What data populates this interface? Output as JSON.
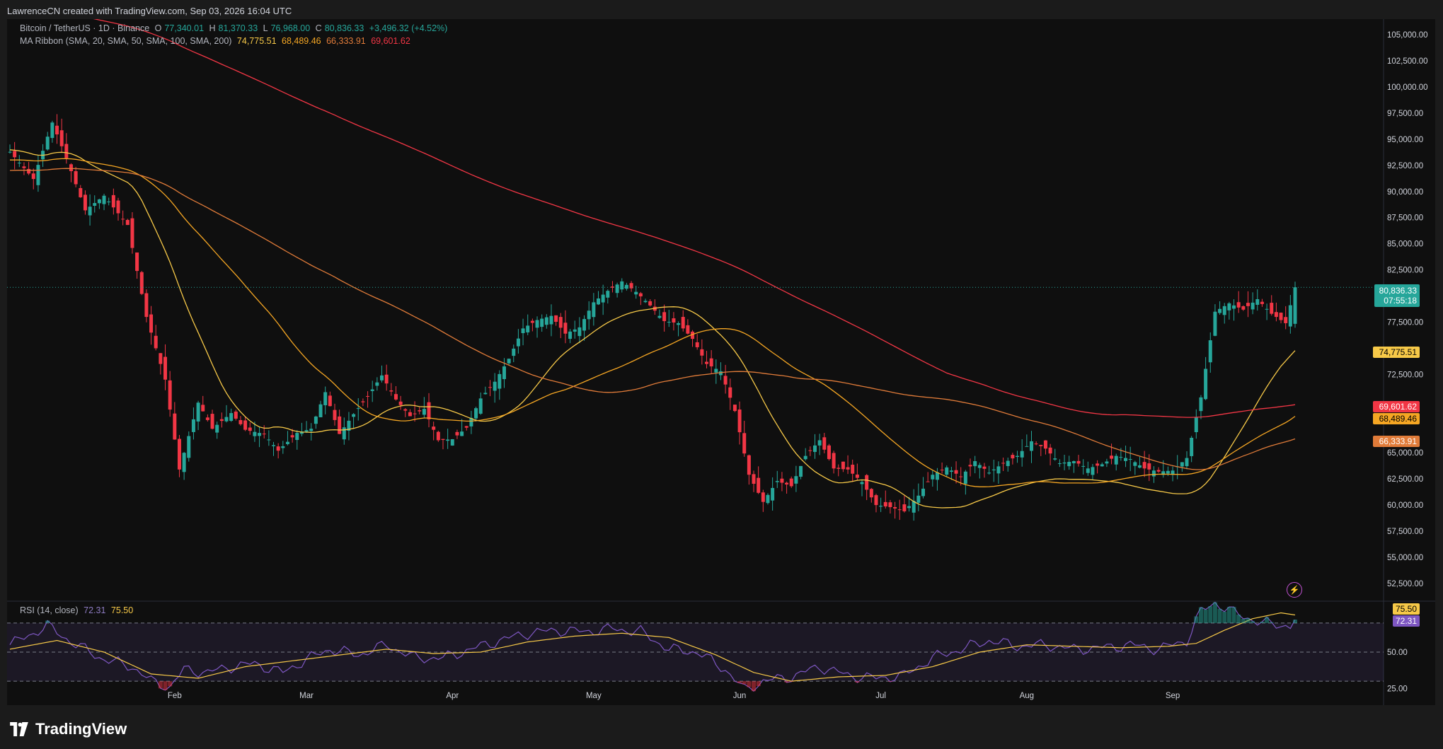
{
  "header": {
    "credit": "LawrenceCN created with TradingView.com, Sep 03, 2026 16:04 UTC"
  },
  "legend": {
    "symbol": "Bitcoin / TetherUS · 1D · Binance",
    "open_label": "O",
    "open": "77,340.01",
    "high_label": "H",
    "high": "81,370.33",
    "low_label": "L",
    "low": "76,968.00",
    "close_label": "C",
    "close": "80,836.33",
    "change": "+3,496.32 (+4.52%)",
    "ribbon_label": "MA Ribbon (SMA, 20, SMA, 50, SMA, 100, SMA, 200)",
    "ma20": "74,775.51",
    "ma50": "68,489.46",
    "ma100": "66,333.91",
    "ma200": "69,601.62"
  },
  "rsi_legend": {
    "label": "RSI (14, close)",
    "rsi": "72.31",
    "rsi_ma": "75.50"
  },
  "price_tag": {
    "price": "80,836.33",
    "countdown": "07:55:18"
  },
  "brand": {
    "name": "TradingView"
  },
  "colors": {
    "up": "#26a69a",
    "down": "#f23645",
    "ma20": "#f7c948",
    "ma50": "#f5a623",
    "ma100": "#e07b39",
    "ma200": "#f23645",
    "rsi": "#7e57c2",
    "rsi_ma": "#f7c948"
  },
  "chart_data": [
    {
      "type": "candlestick",
      "title": "Bitcoin / TetherUS · 1D · Binance",
      "x_labels": [
        "Feb",
        "Mar",
        "Apr",
        "May",
        "Jun",
        "Jul",
        "Aug",
        "Sep"
      ],
      "y_ticks": [
        "105,000.00",
        "102,500.00",
        "100,000.00",
        "97,500.00",
        "95,000.00",
        "92,500.00",
        "90,000.00",
        "87,500.00",
        "85,000.00",
        "82,500.00",
        "77,500.00",
        "72,500.00",
        "65,000.00",
        "62,500.00",
        "60,000.00",
        "57,500.00",
        "55,000.00",
        "52,500.00"
      ],
      "ylim": [
        50800,
        106500
      ],
      "grid": false,
      "candle_anchor_closes": [
        [
          0,
          93800
        ],
        [
          5,
          91200
        ],
        [
          9,
          96600
        ],
        [
          12,
          93200
        ],
        [
          16,
          88200
        ],
        [
          20,
          89600
        ],
        [
          25,
          86800
        ],
        [
          29,
          78000
        ],
        [
          33,
          72000
        ],
        [
          36,
          63400
        ],
        [
          40,
          69800
        ],
        [
          43,
          67300
        ],
        [
          47,
          68800
        ],
        [
          50,
          67200
        ],
        [
          54,
          66800
        ],
        [
          57,
          65200
        ],
        [
          61,
          66900
        ],
        [
          64,
          67300
        ],
        [
          67,
          70800
        ],
        [
          70,
          66800
        ],
        [
          73,
          68700
        ],
        [
          76,
          70400
        ],
        [
          79,
          72400
        ],
        [
          82,
          70100
        ],
        [
          85,
          68500
        ],
        [
          88,
          69200
        ],
        [
          91,
          66200
        ],
        [
          94,
          66300
        ],
        [
          97,
          67400
        ],
        [
          100,
          70200
        ],
        [
          103,
          71800
        ],
        [
          106,
          74000
        ],
        [
          109,
          76900
        ],
        [
          112,
          77700
        ],
        [
          115,
          78100
        ],
        [
          118,
          76400
        ],
        [
          121,
          77000
        ],
        [
          124,
          79400
        ],
        [
          127,
          80500
        ],
        [
          130,
          81400
        ],
        [
          133,
          80400
        ],
        [
          136,
          79100
        ],
        [
          139,
          77600
        ],
        [
          142,
          77400
        ],
        [
          145,
          75900
        ],
        [
          148,
          73500
        ],
        [
          151,
          72800
        ],
        [
          154,
          69000
        ],
        [
          157,
          62900
        ],
        [
          160,
          60300
        ],
        [
          163,
          62300
        ],
        [
          166,
          61800
        ],
        [
          169,
          64700
        ],
        [
          172,
          66200
        ],
        [
          175,
          63500
        ],
        [
          178,
          63400
        ],
        [
          181,
          62200
        ],
        [
          184,
          60000
        ],
        [
          187,
          59800
        ],
        [
          190,
          59400
        ],
        [
          193,
          60900
        ],
        [
          196,
          62900
        ],
        [
          199,
          63600
        ],
        [
          202,
          62700
        ],
        [
          205,
          64200
        ],
        [
          208,
          63100
        ],
        [
          211,
          64000
        ],
        [
          214,
          64700
        ],
        [
          217,
          66100
        ],
        [
          220,
          65400
        ],
        [
          223,
          64000
        ],
        [
          226,
          64200
        ],
        [
          229,
          63500
        ],
        [
          232,
          63900
        ],
        [
          235,
          64700
        ],
        [
          238,
          64400
        ],
        [
          241,
          63500
        ],
        [
          244,
          63200
        ],
        [
          247,
          63300
        ],
        [
          250,
          64500
        ],
        [
          253,
          70300
        ],
        [
          256,
          78500
        ],
        [
          259,
          79300
        ],
        [
          262,
          78700
        ],
        [
          265,
          79700
        ],
        [
          268,
          78300
        ],
        [
          271,
          77400
        ],
        [
          273,
          80836
        ]
      ],
      "series": [
        {
          "name": "SMA 20",
          "last": 74775.51
        },
        {
          "name": "SMA 50",
          "last": 68489.46
        },
        {
          "name": "SMA 100",
          "last": 66333.91
        },
        {
          "name": "SMA 200",
          "last": 69601.62
        }
      ],
      "last_close": 80836.33
    },
    {
      "type": "line",
      "title": "RSI (14, close)",
      "y_ticks": [
        "50.00",
        "25.00"
      ],
      "ylim": [
        15,
        85
      ],
      "bands": [
        30,
        50,
        70
      ],
      "series": [
        {
          "name": "RSI",
          "anchors": [
            [
              0,
              55
            ],
            [
              8,
              68
            ],
            [
              14,
              55
            ],
            [
              20,
              45
            ],
            [
              26,
              40
            ],
            [
              30,
              30
            ],
            [
              34,
              26
            ],
            [
              37,
              38
            ],
            [
              42,
              36
            ],
            [
              47,
              40
            ],
            [
              52,
              42
            ],
            [
              58,
              36
            ],
            [
              63,
              45
            ],
            [
              68,
              52
            ],
            [
              74,
              48
            ],
            [
              80,
              55
            ],
            [
              86,
              46
            ],
            [
              92,
              46
            ],
            [
              98,
              52
            ],
            [
              104,
              58
            ],
            [
              110,
              63
            ],
            [
              116,
              65
            ],
            [
              122,
              64
            ],
            [
              128,
              66
            ],
            [
              134,
              64
            ],
            [
              140,
              52
            ],
            [
              146,
              50
            ],
            [
              152,
              38
            ],
            [
              156,
              24
            ],
            [
              160,
              30
            ],
            [
              166,
              33
            ],
            [
              172,
              40
            ],
            [
              178,
              34
            ],
            [
              184,
              32
            ],
            [
              190,
              34
            ],
            [
              196,
              46
            ],
            [
              202,
              52
            ],
            [
              208,
              58
            ],
            [
              214,
              54
            ],
            [
              220,
              55
            ],
            [
              226,
              52
            ],
            [
              232,
              53
            ],
            [
              238,
              55
            ],
            [
              244,
              52
            ],
            [
              250,
              58
            ],
            [
              253,
              78
            ],
            [
              256,
              84
            ],
            [
              260,
              77
            ],
            [
              266,
              70
            ],
            [
              272,
              68
            ],
            [
              273,
              72.31
            ]
          ]
        },
        {
          "name": "RSI-based MA",
          "anchors": [
            [
              0,
              52
            ],
            [
              10,
              58
            ],
            [
              20,
              50
            ],
            [
              30,
              35
            ],
            [
              40,
              32
            ],
            [
              50,
              40
            ],
            [
              60,
              44
            ],
            [
              70,
              48
            ],
            [
              80,
              52
            ],
            [
              90,
              49
            ],
            [
              100,
              50
            ],
            [
              110,
              57
            ],
            [
              120,
              61
            ],
            [
              130,
              63
            ],
            [
              140,
              60
            ],
            [
              150,
              48
            ],
            [
              158,
              36
            ],
            [
              166,
              30
            ],
            [
              176,
              33
            ],
            [
              186,
              34
            ],
            [
              196,
              40
            ],
            [
              206,
              50
            ],
            [
              216,
              55
            ],
            [
              226,
              54
            ],
            [
              236,
              53
            ],
            [
              246,
              54
            ],
            [
              252,
              56
            ],
            [
              258,
              65
            ],
            [
              264,
              73
            ],
            [
              270,
              77
            ],
            [
              273,
              75.5
            ]
          ]
        }
      ]
    }
  ]
}
